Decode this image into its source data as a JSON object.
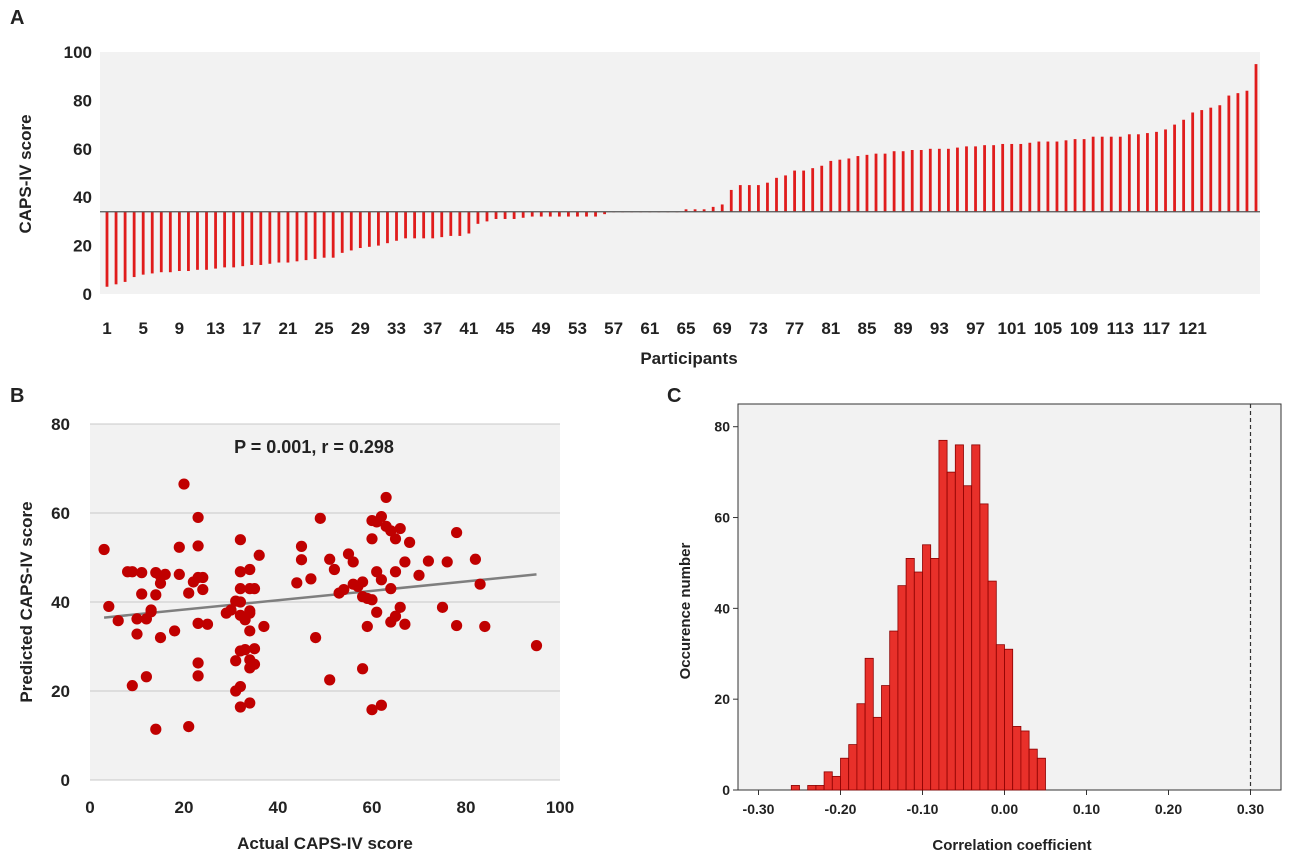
{
  "colors": {
    "bar_red": "#e01b1b",
    "marker_red": "#c00000",
    "trend_gray": "#7f7f7f",
    "plot_bg": "#f2f2f2",
    "hist_fill": "#e8302a",
    "hist_edge": "#8b0000"
  },
  "panels": {
    "a_letter": "A",
    "b_letter": "B",
    "c_letter": "C"
  },
  "chart_data": [
    {
      "id": "A",
      "type": "bar",
      "title": "",
      "ylabel": "CAPS-IV score",
      "xlabel": "Participants",
      "ylim": [
        0,
        100
      ],
      "yticks": [
        "0",
        "20",
        "40",
        "60",
        "80",
        "100"
      ],
      "baseline": 34,
      "tick_labels": [
        "1",
        "5",
        "9",
        "13",
        "17",
        "21",
        "25",
        "29",
        "33",
        "37",
        "41",
        "45",
        "49",
        "53",
        "57",
        "61",
        "65",
        "69",
        "73",
        "77",
        "81",
        "85",
        "89",
        "93",
        "97",
        "101",
        "105",
        "109",
        "113",
        "117",
        "121"
      ],
      "values": [
        3,
        4,
        5,
        7,
        8,
        8.5,
        9,
        9,
        9.5,
        9.5,
        10,
        10,
        10.5,
        11,
        11,
        11.5,
        12,
        12,
        12.5,
        13,
        13,
        13.5,
        14,
        14.5,
        15,
        15,
        17,
        18,
        19,
        19.5,
        20,
        21,
        22,
        23,
        23,
        23,
        23,
        23.5,
        24,
        24,
        25,
        29,
        30,
        31,
        31,
        31,
        31.5,
        32,
        32,
        32,
        32,
        32,
        32,
        32,
        32,
        33,
        34,
        34,
        34,
        34,
        34,
        34,
        34,
        34,
        35,
        35,
        35,
        36,
        37,
        43,
        45,
        45,
        45,
        46,
        48,
        49,
        51,
        51,
        52,
        53,
        55,
        55.5,
        56,
        57,
        57.5,
        58,
        58,
        59,
        59,
        59.5,
        59.5,
        60,
        60,
        60,
        60.5,
        61,
        61,
        61.5,
        61.5,
        62,
        62,
        62,
        62.5,
        63,
        63,
        63,
        63.5,
        64,
        64,
        65,
        65,
        65,
        65,
        66,
        66,
        66.5,
        67,
        68,
        70,
        72,
        75,
        76,
        77,
        78,
        82,
        83,
        84,
        95
      ]
    },
    {
      "id": "B",
      "type": "scatter",
      "annotation": "P = 0.001, r = 0.298",
      "xlabel": "Actual CAPS-IV score",
      "ylabel": "Predicted CAPS-IV score",
      "xlim": [
        0,
        100
      ],
      "ylim": [
        0,
        80
      ],
      "xticks": [
        "0",
        "20",
        "40",
        "60",
        "80",
        "100"
      ],
      "yticks": [
        "0",
        "20",
        "40",
        "60",
        "80"
      ],
      "trend": {
        "x": [
          3,
          95
        ],
        "y": [
          36.5,
          46.2
        ]
      },
      "points": [
        [
          3,
          51.8
        ],
        [
          4,
          39
        ],
        [
          6,
          35.8
        ],
        [
          8,
          46.8
        ],
        [
          9,
          21.2
        ],
        [
          9,
          46.8
        ],
        [
          10,
          36.2
        ],
        [
          10,
          32.8
        ],
        [
          11,
          46.6
        ],
        [
          11,
          41.8
        ],
        [
          12,
          36.2
        ],
        [
          12,
          23.2
        ],
        [
          13,
          38.2
        ],
        [
          13,
          37.8
        ],
        [
          14,
          46.6
        ],
        [
          14,
          41.6
        ],
        [
          15,
          45.8
        ],
        [
          15,
          44.2
        ],
        [
          14,
          11.4
        ],
        [
          15,
          32
        ],
        [
          16,
          46.2
        ],
        [
          18,
          33.5
        ],
        [
          19,
          52.3
        ],
        [
          19,
          46.2
        ],
        [
          20,
          66.5
        ],
        [
          21,
          42
        ],
        [
          21,
          12
        ],
        [
          22,
          44.5
        ],
        [
          23,
          59
        ],
        [
          23,
          52.6
        ],
        [
          23,
          45.5
        ],
        [
          23,
          35.2
        ],
        [
          23,
          26.3
        ],
        [
          23,
          23.4
        ],
        [
          24,
          45.5
        ],
        [
          24,
          42.8
        ],
        [
          25,
          35
        ],
        [
          29,
          37.5
        ],
        [
          30,
          38.2
        ],
        [
          31,
          40.2
        ],
        [
          31,
          26.8
        ],
        [
          31,
          20
        ],
        [
          32,
          54
        ],
        [
          32,
          46.8
        ],
        [
          32,
          43
        ],
        [
          32,
          40
        ],
        [
          32,
          37
        ],
        [
          32,
          29
        ],
        [
          32,
          21
        ],
        [
          32,
          16.4
        ],
        [
          33,
          36
        ],
        [
          33,
          29.3
        ],
        [
          34,
          47.3
        ],
        [
          34,
          43
        ],
        [
          34,
          38
        ],
        [
          34,
          37.5
        ],
        [
          34,
          33.5
        ],
        [
          34,
          27
        ],
        [
          34,
          25.2
        ],
        [
          34,
          17.3
        ],
        [
          35,
          43
        ],
        [
          35,
          29.5
        ],
        [
          35,
          26
        ],
        [
          36,
          50.5
        ],
        [
          37,
          34.5
        ],
        [
          44,
          44.3
        ],
        [
          45,
          52.5
        ],
        [
          45,
          49.5
        ],
        [
          47,
          45.2
        ],
        [
          48,
          32
        ],
        [
          49,
          58.8
        ],
        [
          51,
          49.6
        ],
        [
          51,
          22.5
        ],
        [
          52,
          47.3
        ],
        [
          53,
          42
        ],
        [
          54,
          42.8
        ],
        [
          55,
          50.8
        ],
        [
          56,
          49
        ],
        [
          56,
          44
        ],
        [
          57,
          43.5
        ],
        [
          58,
          44.5
        ],
        [
          58,
          41.2
        ],
        [
          58,
          25
        ],
        [
          59,
          40.8
        ],
        [
          59,
          34.5
        ],
        [
          60,
          58.3
        ],
        [
          60,
          54.2
        ],
        [
          60,
          40.5
        ],
        [
          60,
          15.8
        ],
        [
          61,
          58
        ],
        [
          61,
          46.8
        ],
        [
          61,
          37.7
        ],
        [
          62,
          59.2
        ],
        [
          62,
          45
        ],
        [
          62,
          16.8
        ],
        [
          63,
          63.5
        ],
        [
          63,
          57
        ],
        [
          64,
          56
        ],
        [
          64,
          43
        ],
        [
          64,
          35.5
        ],
        [
          65,
          54.2
        ],
        [
          65,
          46.8
        ],
        [
          65,
          36.8
        ],
        [
          66,
          56.5
        ],
        [
          66,
          38.8
        ],
        [
          67,
          49
        ],
        [
          67,
          35
        ],
        [
          68,
          53.4
        ],
        [
          70,
          46
        ],
        [
          72,
          49.2
        ],
        [
          75,
          38.8
        ],
        [
          76,
          49
        ],
        [
          78,
          55.6
        ],
        [
          78,
          34.7
        ],
        [
          82,
          49.6
        ],
        [
          83,
          44
        ],
        [
          84,
          34.5
        ],
        [
          95,
          30.2
        ]
      ]
    },
    {
      "id": "C",
      "type": "bar",
      "subtype": "histogram",
      "xlabel": "Correlation coefficient",
      "ylabel": "Occurence number",
      "xlim": [
        -0.35,
        0.35
      ],
      "ylim": [
        0,
        85
      ],
      "xticks": [
        "-0.30",
        "-0.20",
        "-0.10",
        "0.00",
        "0.10",
        "0.20",
        "0.30"
      ],
      "yticks": [
        "0",
        "20",
        "40",
        "60",
        "80"
      ],
      "bin_width": 0.01,
      "bin_start": -0.26,
      "counts": [
        1,
        0,
        1,
        1,
        4,
        3,
        7,
        10,
        19,
        29,
        16,
        23,
        35,
        45,
        51,
        48,
        54,
        51,
        77,
        70,
        76,
        67,
        76,
        63,
        46,
        32,
        31,
        14,
        13,
        9,
        7
      ],
      "reference_line": 0.3
    }
  ]
}
